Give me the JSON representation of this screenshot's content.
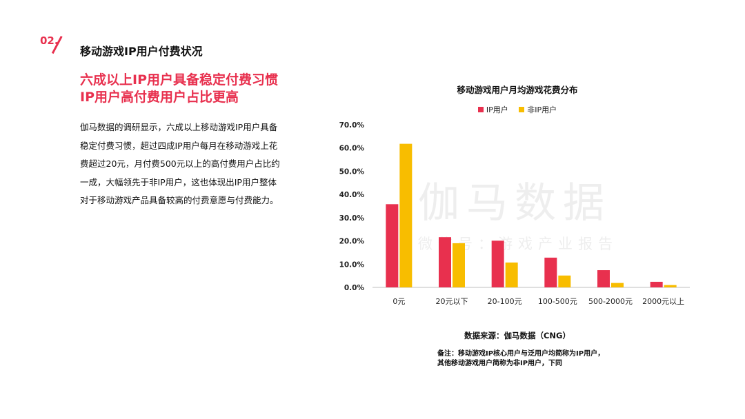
{
  "section": {
    "number": "02.",
    "title": "移动游戏IP用户付费状况"
  },
  "headline": {
    "line1": "六成以上IP用户具备稳定付费习惯",
    "line2": "IP用户高付费用户占比更高"
  },
  "body": {
    "lines": [
      "伽马数据的调研显示，六成以上移动游戏IP用户具备",
      "稳定付费习惯，超过四成IP用户每月在移动游戏上花",
      "费超过20元，月付费500元以上的高付费用户占比约",
      "一成，大幅领先于非IP用户，这也体现出IP用户整体",
      "对于移动游戏产品具备较高的付费意愿与付费能力。"
    ]
  },
  "watermark": {
    "main": "伽马数据",
    "sub": "微信号：游戏产业报告"
  },
  "colors": {
    "accent": "#e8304e",
    "ip": "#e8304e",
    "non_ip": "#f8bd00"
  },
  "chart_data": {
    "type": "bar",
    "title": "移动游戏用户月均游戏花费分布",
    "categories": [
      "0元",
      "20元以下",
      "20-100元",
      "100-500元",
      "500-2000元",
      "2000元以上"
    ],
    "series": [
      {
        "name": "IP用户",
        "values": [
          35.8,
          21.6,
          20.1,
          12.8,
          7.4,
          2.4
        ]
      },
      {
        "name": "非IP用户",
        "values": [
          61.8,
          19.0,
          10.7,
          5.1,
          1.9,
          1.0
        ]
      }
    ],
    "ylim": [
      0,
      70
    ],
    "yticks": [
      "0.0%",
      "10.0%",
      "20.0%",
      "30.0%",
      "40.0%",
      "50.0%",
      "60.0%",
      "70.0%"
    ],
    "legend_position": "top",
    "grid": false
  },
  "source": "数据来源：伽马数据（CNG）",
  "note": "备注：移动游戏IP核心用户与泛用户均简称为IP用户，其他移动游戏用户简称为非IP用户，下同"
}
